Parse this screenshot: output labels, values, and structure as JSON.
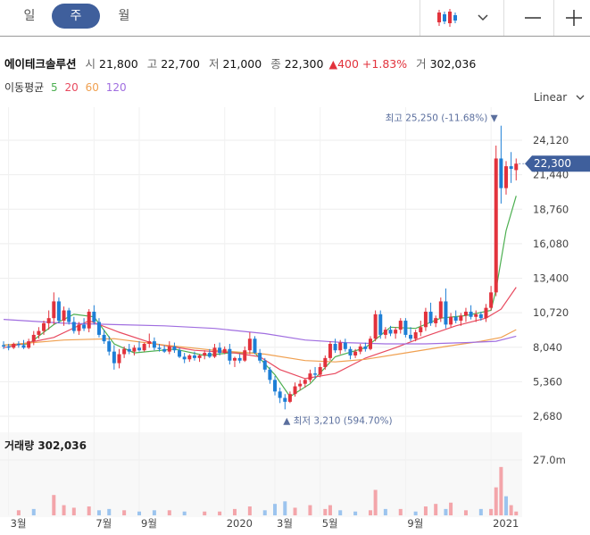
{
  "tabs": [
    {
      "label": "일",
      "active": false
    },
    {
      "label": "주",
      "active": true
    },
    {
      "label": "월",
      "active": false
    }
  ],
  "controls": {
    "chart_type_icon": "candlestick-icon",
    "dropdown_icon": "chevron-down-icon",
    "minus_icon": "minus-icon",
    "plus_icon": "plus-icon"
  },
  "quote": {
    "name": "에이테크솔루션",
    "open_label": "시",
    "open": "21,800",
    "high_label": "고",
    "high": "22,700",
    "low_label": "저",
    "low": "21,000",
    "close_label": "종",
    "close": "22,300",
    "change_arrow": "▲",
    "change": "400",
    "change_pct": "+1.83%",
    "volume_label": "거",
    "volume": "302,036"
  },
  "moving_average": {
    "label": "이동평균",
    "periods": [
      {
        "label": "5",
        "color": "#4caf50"
      },
      {
        "label": "20",
        "color": "#e84a5f"
      },
      {
        "label": "60",
        "color": "#f0a050"
      },
      {
        "label": "120",
        "color": "#a06ee0"
      }
    ]
  },
  "scale_mode": "Linear",
  "volume_panel": {
    "label": "거래량",
    "value": "302,036",
    "axis_label": "27.0m"
  },
  "colors": {
    "up": "#e2323c",
    "down": "#1e7fd6",
    "accent": "#3f5f9c"
  },
  "chart_data": {
    "type": "candlestick",
    "y_ticks": [
      "24,120",
      "21,440",
      "18,760",
      "16,080",
      "13,400",
      "10,720",
      "8,040",
      "5,360",
      "2,680"
    ],
    "y_tick_values": [
      24120,
      21440,
      18760,
      16080,
      13400,
      10720,
      8040,
      5360,
      2680
    ],
    "ylim": [
      1000,
      26500
    ],
    "x_ticks": [
      "3월",
      "7월",
      "9월",
      "2020",
      "3월",
      "5월",
      "9월",
      "2021"
    ],
    "x_tick_index": [
      1,
      18,
      27,
      44,
      54,
      63,
      80,
      97
    ],
    "current_price": {
      "label": "22,300",
      "value": 22300
    },
    "high_annotation": {
      "label": "최고",
      "value": 25250,
      "text": "25,250 (-11.68%)",
      "marker": "▼",
      "index": 98
    },
    "low_annotation": {
      "label": "최저",
      "value": 3210,
      "text": "3,210 (594.70%)",
      "marker": "▲",
      "index": 56
    },
    "candles": [
      [
        8200,
        8500,
        7900,
        8100
      ],
      [
        8100,
        8300,
        7800,
        8000
      ],
      [
        8000,
        8400,
        7900,
        8300
      ],
      [
        8300,
        8500,
        8000,
        8200
      ],
      [
        8200,
        8600,
        7900,
        8000
      ],
      [
        8000,
        8700,
        7900,
        8500
      ],
      [
        8500,
        9300,
        8200,
        9000
      ],
      [
        9000,
        9600,
        8700,
        9300
      ],
      [
        9300,
        10100,
        9000,
        9900
      ],
      [
        9900,
        10900,
        9400,
        10300
      ],
      [
        10300,
        12300,
        9800,
        11600
      ],
      [
        11600,
        11900,
        9900,
        10100
      ],
      [
        10100,
        11200,
        9700,
        10900
      ],
      [
        10900,
        11100,
        9800,
        10000
      ],
      [
        10000,
        10400,
        9100,
        9300
      ],
      [
        9300,
        10000,
        9000,
        9800
      ],
      [
        9800,
        10300,
        9300,
        9500
      ],
      [
        9500,
        11000,
        9200,
        10800
      ],
      [
        10800,
        11300,
        9800,
        10000
      ],
      [
        10000,
        10300,
        8800,
        9000
      ],
      [
        9000,
        9400,
        8300,
        8500
      ],
      [
        8500,
        8900,
        7400,
        7700
      ],
      [
        7700,
        8200,
        6300,
        6800
      ],
      [
        6800,
        7900,
        6400,
        7500
      ],
      [
        7500,
        8100,
        7200,
        7900
      ],
      [
        7900,
        8300,
        7500,
        7700
      ],
      [
        7700,
        8200,
        7400,
        8000
      ],
      [
        8000,
        8500,
        7700,
        7800
      ],
      [
        7800,
        8400,
        7700,
        8300
      ],
      [
        8300,
        9100,
        8000,
        8500
      ],
      [
        8500,
        8800,
        7800,
        8000
      ],
      [
        8000,
        8300,
        7700,
        7900
      ],
      [
        7900,
        8200,
        7600,
        7700
      ],
      [
        7700,
        8500,
        7500,
        8100
      ],
      [
        8100,
        8400,
        7600,
        7800
      ],
      [
        7800,
        8000,
        7200,
        7300
      ],
      [
        7300,
        7600,
        6800,
        7100
      ],
      [
        7100,
        7500,
        6900,
        7400
      ],
      [
        7400,
        7700,
        7000,
        7200
      ],
      [
        7200,
        7500,
        6900,
        7400
      ],
      [
        7400,
        7800,
        7100,
        7600
      ],
      [
        7600,
        7900,
        7200,
        7300
      ],
      [
        7300,
        8300,
        7200,
        8000
      ],
      [
        8000,
        8400,
        7400,
        7600
      ],
      [
        7600,
        8100,
        7500,
        7900
      ],
      [
        7900,
        8300,
        6700,
        7000
      ],
      [
        7000,
        7300,
        6500,
        7200
      ],
      [
        7200,
        7500,
        6800,
        7000
      ],
      [
        7000,
        8100,
        6900,
        7800
      ],
      [
        7800,
        9200,
        7500,
        8700
      ],
      [
        8700,
        8900,
        7500,
        7600
      ],
      [
        7600,
        7900,
        6800,
        7000
      ],
      [
        7000,
        7200,
        6100,
        6300
      ],
      [
        6300,
        6500,
        5200,
        5500
      ],
      [
        5500,
        5800,
        4300,
        4600
      ],
      [
        4600,
        4900,
        3700,
        4100
      ],
      [
        4100,
        4400,
        3210,
        3800
      ],
      [
        3800,
        4600,
        3700,
        4400
      ],
      [
        4400,
        5300,
        4200,
        5000
      ],
      [
        5000,
        5500,
        4700,
        5200
      ],
      [
        5200,
        5600,
        4900,
        5500
      ],
      [
        5500,
        6300,
        5300,
        6000
      ],
      [
        6000,
        6500,
        5600,
        5900
      ],
      [
        5900,
        6800,
        5700,
        6500
      ],
      [
        6500,
        7400,
        6300,
        7200
      ],
      [
        7200,
        8500,
        7000,
        8300
      ],
      [
        8300,
        8700,
        7600,
        7800
      ],
      [
        7800,
        8600,
        7500,
        8400
      ],
      [
        8400,
        8700,
        7700,
        7900
      ],
      [
        7900,
        8100,
        7100,
        7400
      ],
      [
        7400,
        7900,
        7200,
        7700
      ],
      [
        7700,
        8300,
        7500,
        8100
      ],
      [
        8100,
        8400,
        7700,
        7900
      ],
      [
        7900,
        8900,
        7800,
        8700
      ],
      [
        8700,
        10900,
        8500,
        10600
      ],
      [
        10600,
        10900,
        8700,
        9000
      ],
      [
        9000,
        9600,
        8700,
        9400
      ],
      [
        9400,
        9700,
        8900,
        9100
      ],
      [
        9100,
        9600,
        8700,
        9400
      ],
      [
        9400,
        10300,
        9100,
        10100
      ],
      [
        10100,
        10300,
        8800,
        9000
      ],
      [
        9000,
        9600,
        8500,
        8700
      ],
      [
        8700,
        9400,
        8500,
        9200
      ],
      [
        9200,
        10100,
        8900,
        9600
      ],
      [
        9600,
        11100,
        9300,
        10800
      ],
      [
        10800,
        11500,
        9700,
        9900
      ],
      [
        9900,
        10500,
        9600,
        10300
      ],
      [
        10300,
        11900,
        10000,
        11600
      ],
      [
        11600,
        12600,
        9500,
        9800
      ],
      [
        9800,
        10700,
        9600,
        10400
      ],
      [
        10400,
        10900,
        9900,
        10100
      ],
      [
        10100,
        10700,
        9700,
        10500
      ],
      [
        10500,
        11100,
        10000,
        10800
      ],
      [
        10800,
        11300,
        10200,
        10400
      ],
      [
        10400,
        10900,
        10000,
        10600
      ],
      [
        10600,
        10800,
        10100,
        10300
      ],
      [
        10300,
        11400,
        10000,
        11100
      ],
      [
        11100,
        12800,
        10900,
        12300
      ],
      [
        12300,
        23700,
        12000,
        22700
      ],
      [
        22700,
        25250,
        19200,
        20400
      ],
      [
        20400,
        22500,
        19900,
        22100
      ],
      [
        22100,
        23200,
        20800,
        21900
      ],
      [
        21800,
        22700,
        21000,
        22300
      ]
    ],
    "ma_lines": [
      {
        "period": "5",
        "color": "#4caf50",
        "values": [
          [
            0,
            8200
          ],
          [
            5,
            8300
          ],
          [
            10,
            9800
          ],
          [
            14,
            10600
          ],
          [
            18,
            10400
          ],
          [
            22,
            8300
          ],
          [
            26,
            7600
          ],
          [
            34,
            7900
          ],
          [
            40,
            7400
          ],
          [
            45,
            7600
          ],
          [
            50,
            7600
          ],
          [
            54,
            5900
          ],
          [
            57,
            4200
          ],
          [
            61,
            5200
          ],
          [
            66,
            7300
          ],
          [
            72,
            8000
          ],
          [
            77,
            9600
          ],
          [
            82,
            9500
          ],
          [
            87,
            10300
          ],
          [
            92,
            10500
          ],
          [
            97,
            10900
          ],
          [
            98,
            12500
          ],
          [
            100,
            17100
          ],
          [
            102,
            19800
          ]
        ]
      },
      {
        "period": "20",
        "color": "#e84a5f",
        "values": [
          [
            0,
            8000
          ],
          [
            10,
            8800
          ],
          [
            17,
            10100
          ],
          [
            23,
            9200
          ],
          [
            30,
            8300
          ],
          [
            38,
            7800
          ],
          [
            46,
            7600
          ],
          [
            51,
            7300
          ],
          [
            55,
            6300
          ],
          [
            60,
            5600
          ],
          [
            66,
            6000
          ],
          [
            72,
            7200
          ],
          [
            78,
            8000
          ],
          [
            84,
            8900
          ],
          [
            90,
            9700
          ],
          [
            96,
            10300
          ],
          [
            99,
            11000
          ],
          [
            102,
            12700
          ]
        ]
      },
      {
        "period": "60",
        "color": "#f0a050",
        "values": [
          [
            0,
            8200
          ],
          [
            12,
            8600
          ],
          [
            22,
            8700
          ],
          [
            32,
            8200
          ],
          [
            42,
            7800
          ],
          [
            52,
            7500
          ],
          [
            60,
            7000
          ],
          [
            66,
            6900
          ],
          [
            72,
            7100
          ],
          [
            80,
            7600
          ],
          [
            88,
            8100
          ],
          [
            95,
            8500
          ],
          [
            99,
            8800
          ],
          [
            102,
            9400
          ]
        ]
      },
      {
        "period": "120",
        "color": "#a06ee0",
        "values": [
          [
            0,
            10200
          ],
          [
            12,
            9900
          ],
          [
            22,
            9800
          ],
          [
            32,
            9700
          ],
          [
            42,
            9500
          ],
          [
            52,
            9100
          ],
          [
            60,
            8600
          ],
          [
            68,
            8400
          ],
          [
            76,
            8300
          ],
          [
            84,
            8300
          ],
          [
            92,
            8400
          ],
          [
            98,
            8500
          ],
          [
            102,
            8900
          ]
        ]
      }
    ],
    "volume": {
      "max": 27000000,
      "bars": [
        [
          3,
          4,
          "up"
        ],
        [
          6,
          5,
          "down"
        ],
        [
          10,
          16,
          "up"
        ],
        [
          12,
          8,
          "up"
        ],
        [
          14,
          6,
          "up"
        ],
        [
          17,
          7,
          "up"
        ],
        [
          19,
          4,
          "down"
        ],
        [
          21,
          5,
          "down"
        ],
        [
          24,
          4,
          "up"
        ],
        [
          27,
          3,
          "down"
        ],
        [
          30,
          4,
          "down"
        ],
        [
          33,
          4,
          "up"
        ],
        [
          36,
          3,
          "down"
        ],
        [
          40,
          3,
          "up"
        ],
        [
          43,
          3,
          "up"
        ],
        [
          46,
          5,
          "up"
        ],
        [
          49,
          7,
          "up"
        ],
        [
          52,
          4,
          "down"
        ],
        [
          54,
          9,
          "down"
        ],
        [
          56,
          11,
          "down"
        ],
        [
          58,
          6,
          "up"
        ],
        [
          61,
          8,
          "up"
        ],
        [
          64,
          5,
          "up"
        ],
        [
          65,
          8,
          "up"
        ],
        [
          67,
          4,
          "down"
        ],
        [
          70,
          3,
          "down"
        ],
        [
          73,
          4,
          "up"
        ],
        [
          74,
          20,
          "up"
        ],
        [
          76,
          5,
          "down"
        ],
        [
          79,
          5,
          "up"
        ],
        [
          82,
          3,
          "down"
        ],
        [
          84,
          7,
          "up"
        ],
        [
          86,
          9,
          "up"
        ],
        [
          88,
          5,
          "down"
        ],
        [
          89,
          10,
          "up"
        ],
        [
          92,
          4,
          "up"
        ],
        [
          95,
          5,
          "down"
        ],
        [
          97,
          5,
          "up"
        ],
        [
          98,
          22,
          "up"
        ],
        [
          99,
          38,
          "up"
        ],
        [
          100,
          15,
          "down"
        ],
        [
          101,
          8,
          "up"
        ],
        [
          102,
          3,
          "up"
        ]
      ]
    }
  }
}
